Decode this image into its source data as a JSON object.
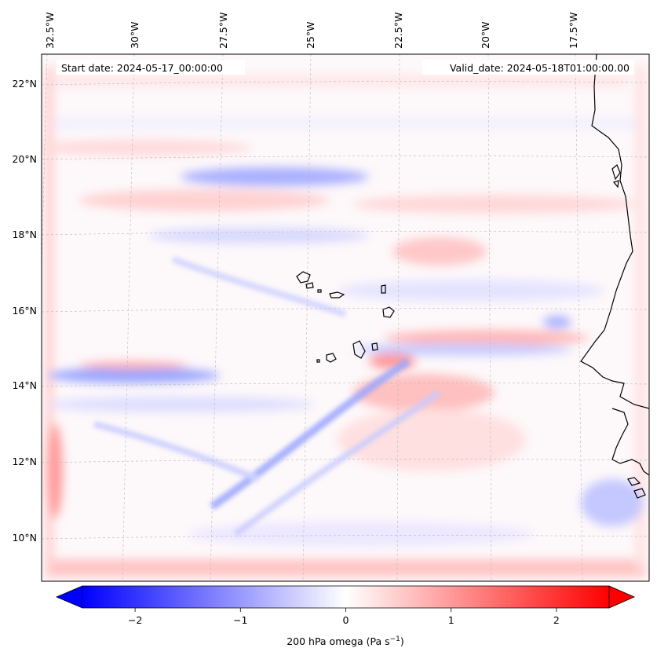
{
  "map": {
    "start_date": "Start date: 2024-05-17_00:00:00",
    "valid_date": "Valid_date: 2024-05-18T01:00:00.00",
    "lon_labels": [
      "32.5°W",
      "30°W",
      "27.5°W",
      "25°W",
      "22.5°W",
      "20°W",
      "17.5°W"
    ],
    "lat_labels": [
      "22°N",
      "20°N",
      "18°N",
      "16°N",
      "14°N",
      "12°N",
      "10°N"
    ],
    "field_colors": {
      "negative": "#0000ff",
      "zero": "#ffffff",
      "positive": "#ff0000",
      "coastline": "#000000"
    }
  },
  "colorbar": {
    "min": -2.5,
    "max": 2.5,
    "extend": "both",
    "tick_values": [
      -2,
      -1,
      0,
      1,
      2
    ],
    "tick_labels": [
      "−2",
      "−1",
      "0",
      "1",
      "2"
    ],
    "label_prefix": "200 hPa omega (Pa s",
    "label_exp": "−1",
    "label_suffix": ")"
  }
}
